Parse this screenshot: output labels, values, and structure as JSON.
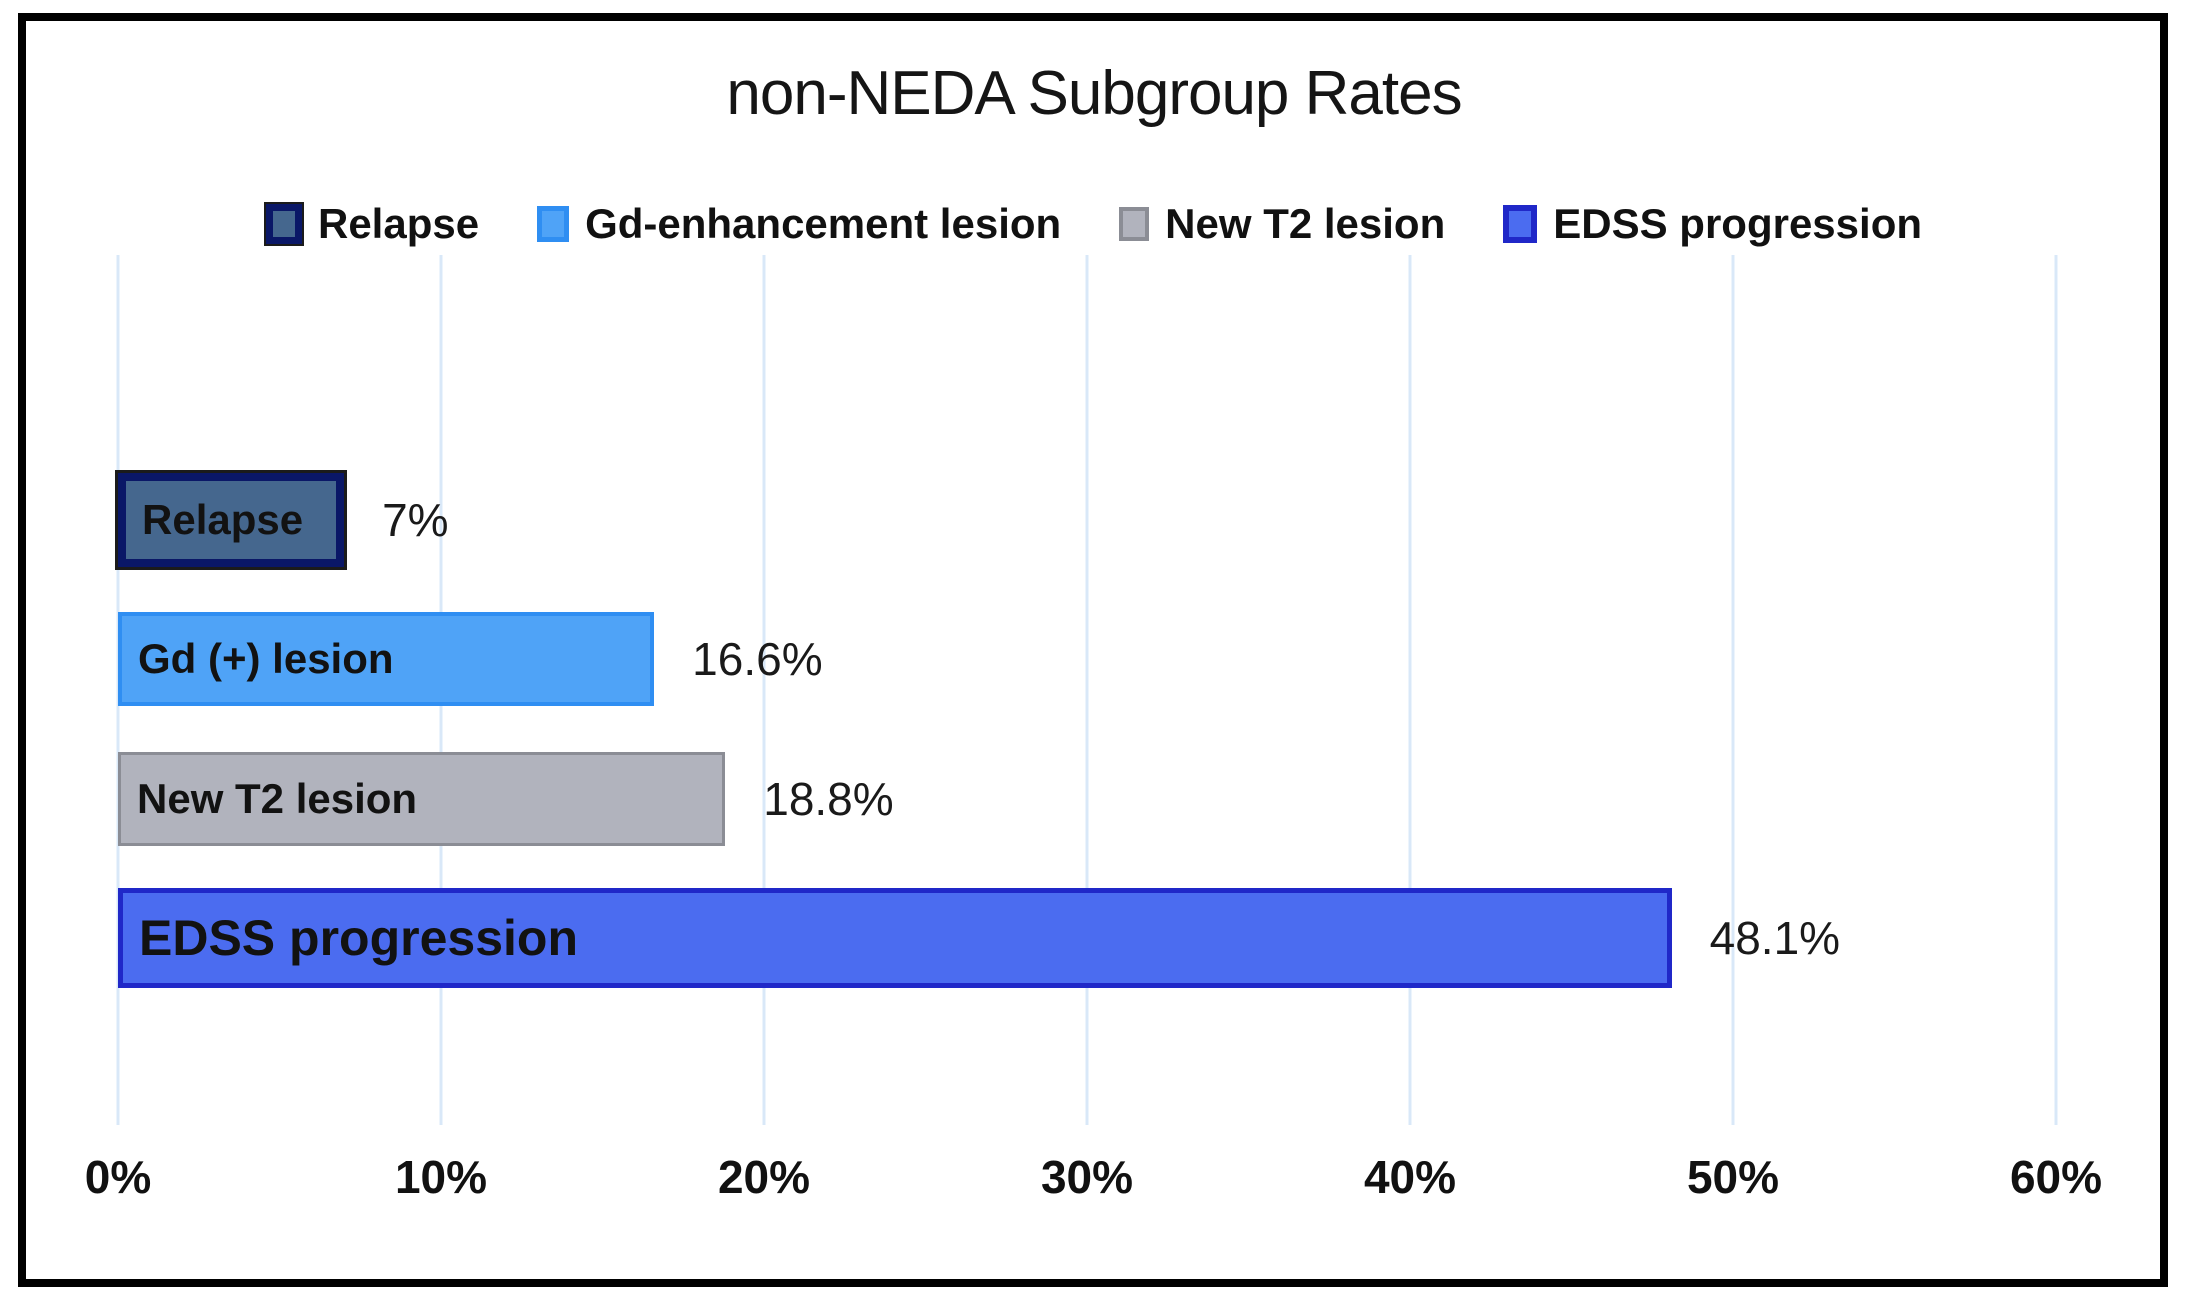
{
  "title": "non-NEDA Subgroup Rates",
  "legend": [
    {
      "label": "Relapse",
      "fill": "#45678e",
      "border": "#0a1767"
    },
    {
      "label": "Gd-enhancement lesion",
      "fill": "#4fa3f7",
      "border": "#2f8ef2"
    },
    {
      "label": "New T2 lesion",
      "fill": "#b1b3bd",
      "border": "#8b8d95"
    },
    {
      "label": "EDSS progression",
      "fill": "#4b6cf0",
      "border": "#2028c8"
    }
  ],
  "chart_data": {
    "type": "bar",
    "orientation": "horizontal",
    "title": "non-NEDA Subgroup Rates",
    "categories": [
      "Relapse",
      "Gd (+) lesion",
      "New T2 lesion",
      "EDSS progression"
    ],
    "values": [
      7,
      16.6,
      18.8,
      48.1
    ],
    "value_labels": [
      "7%",
      "16.6%",
      "18.8%",
      "48.1%"
    ],
    "bar_colors": [
      {
        "fill": "#45678e",
        "border": "#0a1767"
      },
      {
        "fill": "#4fa3f7",
        "border": "#2f8ef2"
      },
      {
        "fill": "#b1b3bd",
        "border": "#8b8d95"
      },
      {
        "fill": "#4b6cf0",
        "border": "#2028c8"
      }
    ],
    "xlim": [
      0,
      60
    ],
    "x_ticks": [
      "0%",
      "10%",
      "20%",
      "30%",
      "40%",
      "50%",
      "60%"
    ],
    "x_tick_values": [
      0,
      10,
      20,
      30,
      40,
      50,
      60
    ],
    "grid": true,
    "gridline_color": "#d9e8f8",
    "legend_position": "top",
    "legend_entries": [
      "Relapse",
      "Gd-enhancement lesion",
      "New T2 lesion",
      "EDSS progression"
    ]
  }
}
